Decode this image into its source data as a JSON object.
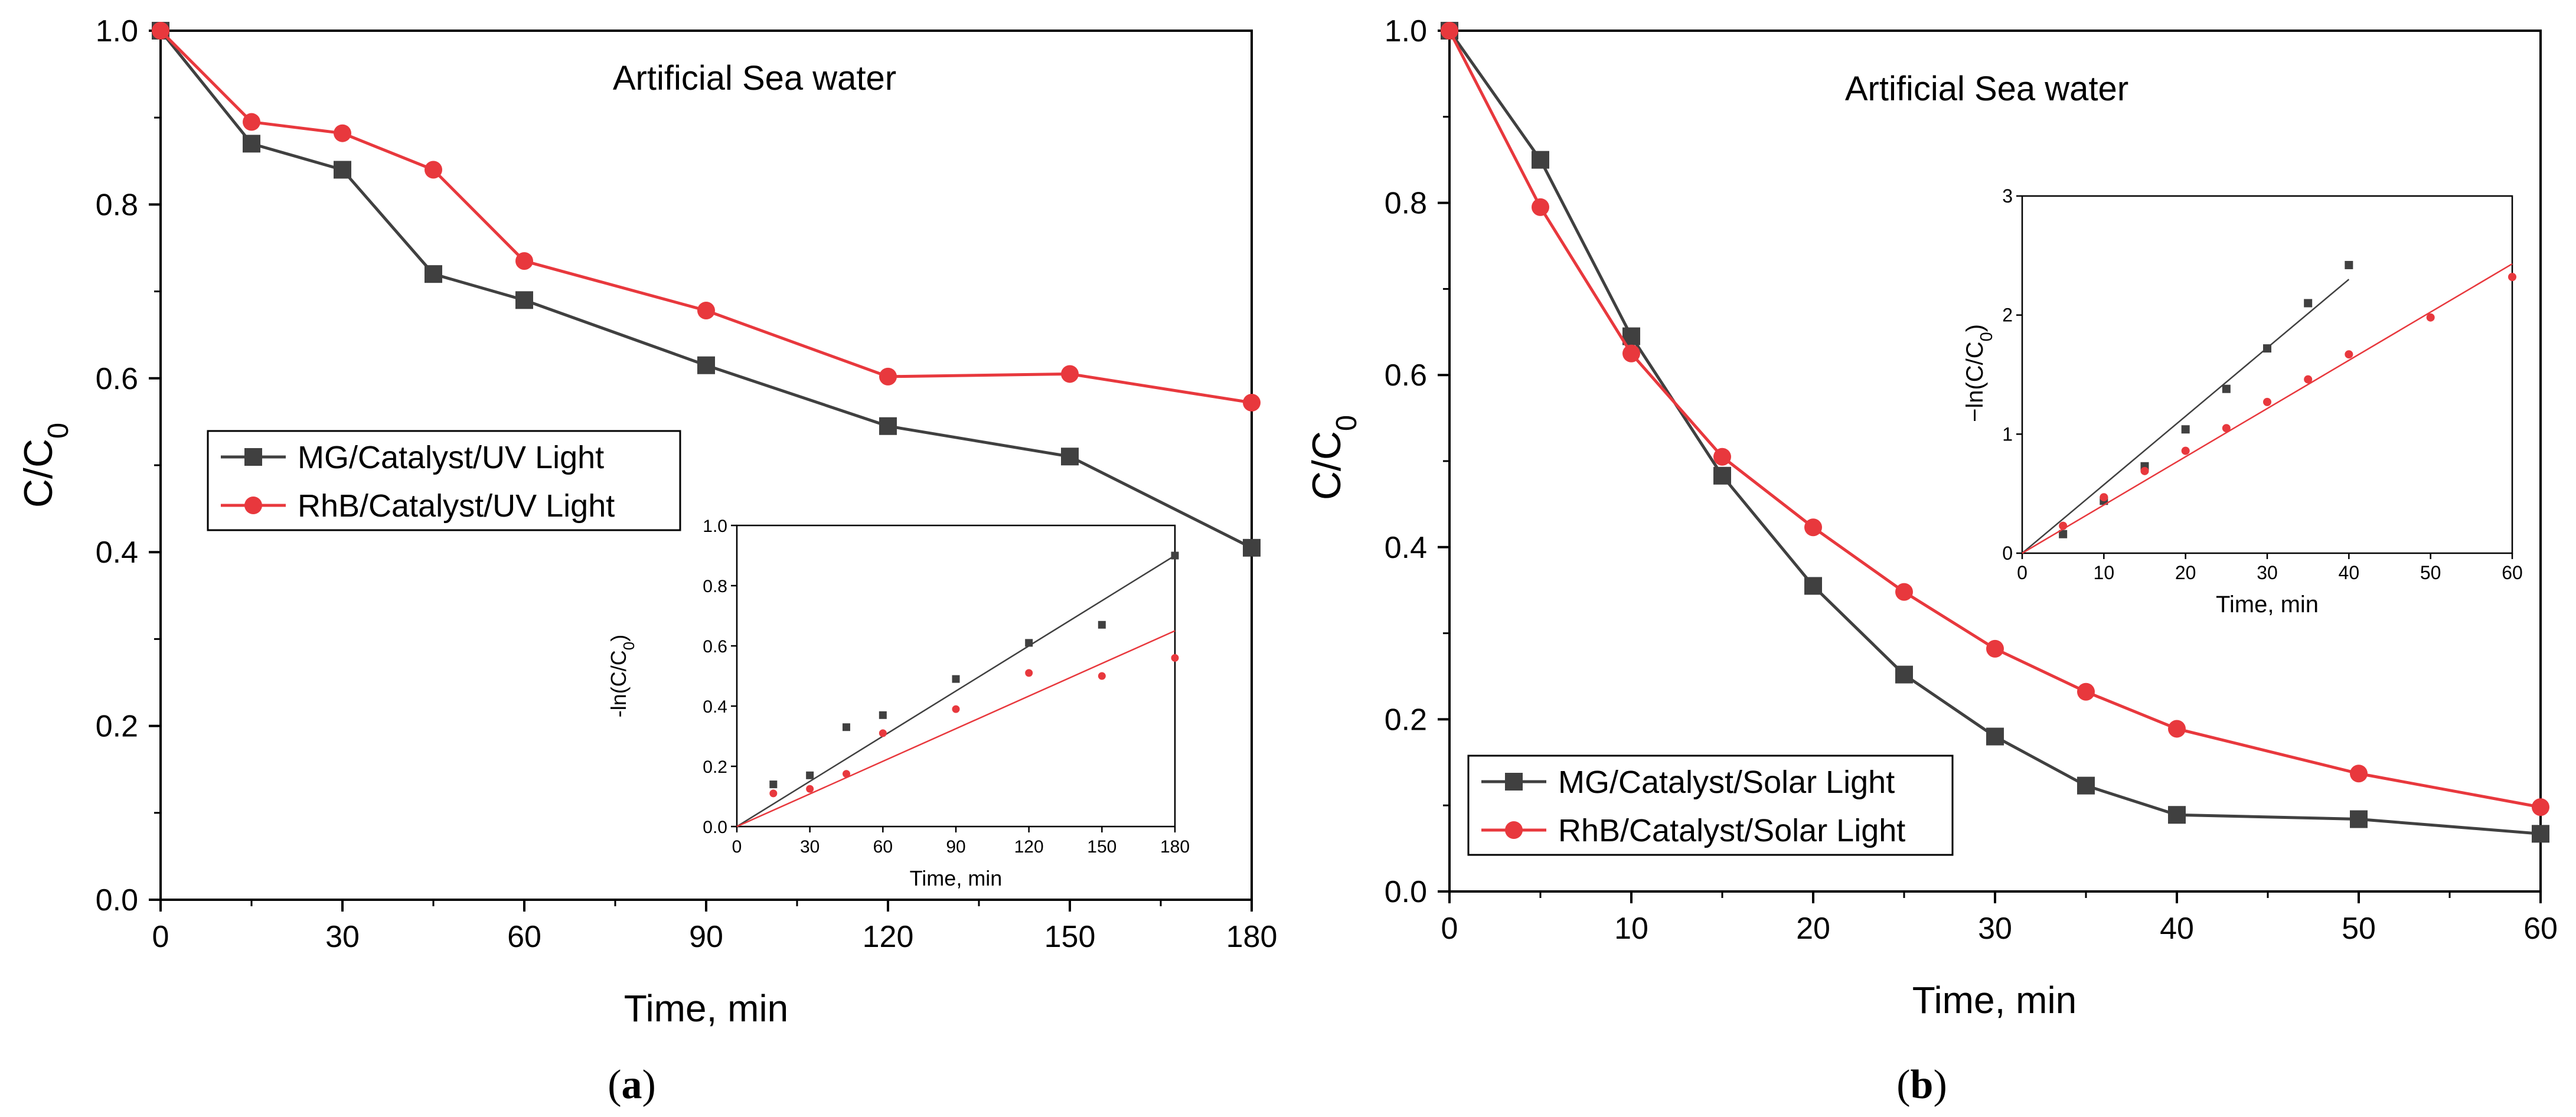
{
  "chart_data": [
    {
      "type": "line",
      "panel_label": "a",
      "annotation": "Artificial Sea water",
      "xlabel": "Time, min",
      "ylabel": "C/C",
      "ylabel_sub": "0",
      "xlim": [
        0,
        180
      ],
      "ylim": [
        0,
        1.0
      ],
      "xticks": [
        0,
        30,
        60,
        90,
        120,
        150,
        180
      ],
      "yticks": [
        0.0,
        0.2,
        0.4,
        0.6,
        0.8,
        1.0
      ],
      "xtick_labels": [
        "0",
        "30",
        "60",
        "90",
        "120",
        "150",
        "180"
      ],
      "ytick_labels": [
        "0.0",
        "0.2",
        "0.4",
        "0.6",
        "0.8",
        "1.0"
      ],
      "grid": false,
      "legend_position": "center-left",
      "series": [
        {
          "name": "MG/Catalyst/UV Light",
          "color": "#404040",
          "marker": "square",
          "x": [
            0,
            15,
            30,
            45,
            60,
            90,
            120,
            150,
            180
          ],
          "y": [
            1.0,
            0.87,
            0.84,
            0.72,
            0.69,
            0.615,
            0.545,
            0.51,
            0.405
          ]
        },
        {
          "name": "RhB/Catalyst/UV Light",
          "color": "#e8383d",
          "marker": "circle",
          "x": [
            0,
            15,
            30,
            45,
            60,
            90,
            120,
            150,
            180
          ],
          "y": [
            1.0,
            0.895,
            0.882,
            0.84,
            0.735,
            0.678,
            0.602,
            0.605,
            0.572
          ]
        }
      ],
      "inset": {
        "xlabel": "Time, min",
        "ylabel": "-ln(C/C",
        "ylabel_sub": "0",
        "ylabel_close": ")",
        "xlim": [
          0,
          180
        ],
        "ylim": [
          0,
          1.0
        ],
        "xticks": [
          0,
          30,
          60,
          90,
          120,
          150,
          180
        ],
        "yticks": [
          0.0,
          0.2,
          0.4,
          0.6,
          0.8,
          1.0
        ],
        "xtick_labels": [
          "0",
          "30",
          "60",
          "90",
          "120",
          "150",
          "180"
        ],
        "ytick_labels": [
          "0.0",
          "0.2",
          "0.4",
          "0.6",
          "0.8",
          "1.0"
        ],
        "series": [
          {
            "color": "#404040",
            "marker": "square",
            "x": [
              15,
              30,
              45,
              60,
              90,
              120,
              150,
              180
            ],
            "y": [
              0.14,
              0.17,
              0.33,
              0.37,
              0.49,
              0.61,
              0.67,
              0.9
            ],
            "fit": [
              [
                0,
                0.0
              ],
              [
                180,
                0.9
              ]
            ]
          },
          {
            "color": "#e8383d",
            "marker": "circle",
            "x": [
              15,
              30,
              45,
              60,
              90,
              120,
              150,
              180
            ],
            "y": [
              0.11,
              0.125,
              0.175,
              0.31,
              0.39,
              0.51,
              0.5,
              0.56
            ],
            "fit": [
              [
                0,
                0.0
              ],
              [
                180,
                0.65
              ]
            ]
          }
        ]
      }
    },
    {
      "type": "line",
      "panel_label": "b",
      "annotation": "Artificial Sea water",
      "xlabel": "Time, min",
      "ylabel": "C/C",
      "ylabel_sub": "0",
      "xlim": [
        0,
        60
      ],
      "ylim": [
        0,
        1.0
      ],
      "xticks": [
        0,
        10,
        20,
        30,
        40,
        50,
        60
      ],
      "yticks": [
        0.0,
        0.2,
        0.4,
        0.6,
        0.8,
        1.0
      ],
      "xtick_labels": [
        "0",
        "10",
        "20",
        "30",
        "40",
        "50",
        "60"
      ],
      "ytick_labels": [
        "0.0",
        "0.2",
        "0.4",
        "0.6",
        "0.8",
        "1.0"
      ],
      "grid": false,
      "legend_position": "bottom-left",
      "series": [
        {
          "name": "MG/Catalyst/Solar Light",
          "color": "#404040",
          "marker": "square",
          "x": [
            0,
            5,
            10,
            15,
            20,
            25,
            30,
            35,
            40,
            50,
            60
          ],
          "y": [
            1.0,
            0.85,
            0.645,
            0.483,
            0.355,
            0.252,
            0.18,
            0.123,
            0.089,
            0.084,
            0.067
          ]
        },
        {
          "name": "RhB/Catalyst/Solar Light",
          "color": "#e8383d",
          "marker": "circle",
          "x": [
            0,
            5,
            10,
            15,
            20,
            25,
            30,
            35,
            40,
            50,
            60
          ],
          "y": [
            1.0,
            0.795,
            0.625,
            0.505,
            0.423,
            0.348,
            0.282,
            0.232,
            0.189,
            0.137,
            0.098
          ]
        }
      ],
      "inset": {
        "xlabel": "Time, min",
        "ylabel": "−ln(C/C",
        "ylabel_sub": "0",
        "ylabel_close": ")",
        "xlim": [
          0,
          60
        ],
        "ylim": [
          0,
          3
        ],
        "xticks": [
          0,
          10,
          20,
          30,
          40,
          50,
          60
        ],
        "yticks": [
          0,
          1,
          2,
          3
        ],
        "xtick_labels": [
          "0",
          "10",
          "20",
          "30",
          "40",
          "50",
          "60"
        ],
        "ytick_labels": [
          "0",
          "1",
          "2",
          "3"
        ],
        "series": [
          {
            "color": "#404040",
            "marker": "square",
            "x": [
              5,
              10,
              15,
              20,
              25,
              30,
              35,
              40
            ],
            "y": [
              0.16,
              0.44,
              0.73,
              1.04,
              1.38,
              1.72,
              2.1,
              2.42
            ],
            "fit": [
              [
                0,
                0.0
              ],
              [
                40,
                2.3
              ]
            ]
          },
          {
            "color": "#e8383d",
            "marker": "circle",
            "x": [
              5,
              10,
              15,
              20,
              25,
              30,
              35,
              40,
              50,
              60
            ],
            "y": [
              0.23,
              0.47,
              0.69,
              0.86,
              1.05,
              1.27,
              1.46,
              1.67,
              1.98,
              2.32
            ],
            "fit": [
              [
                0,
                0.0
              ],
              [
                60,
                2.43
              ]
            ]
          }
        ]
      }
    }
  ]
}
